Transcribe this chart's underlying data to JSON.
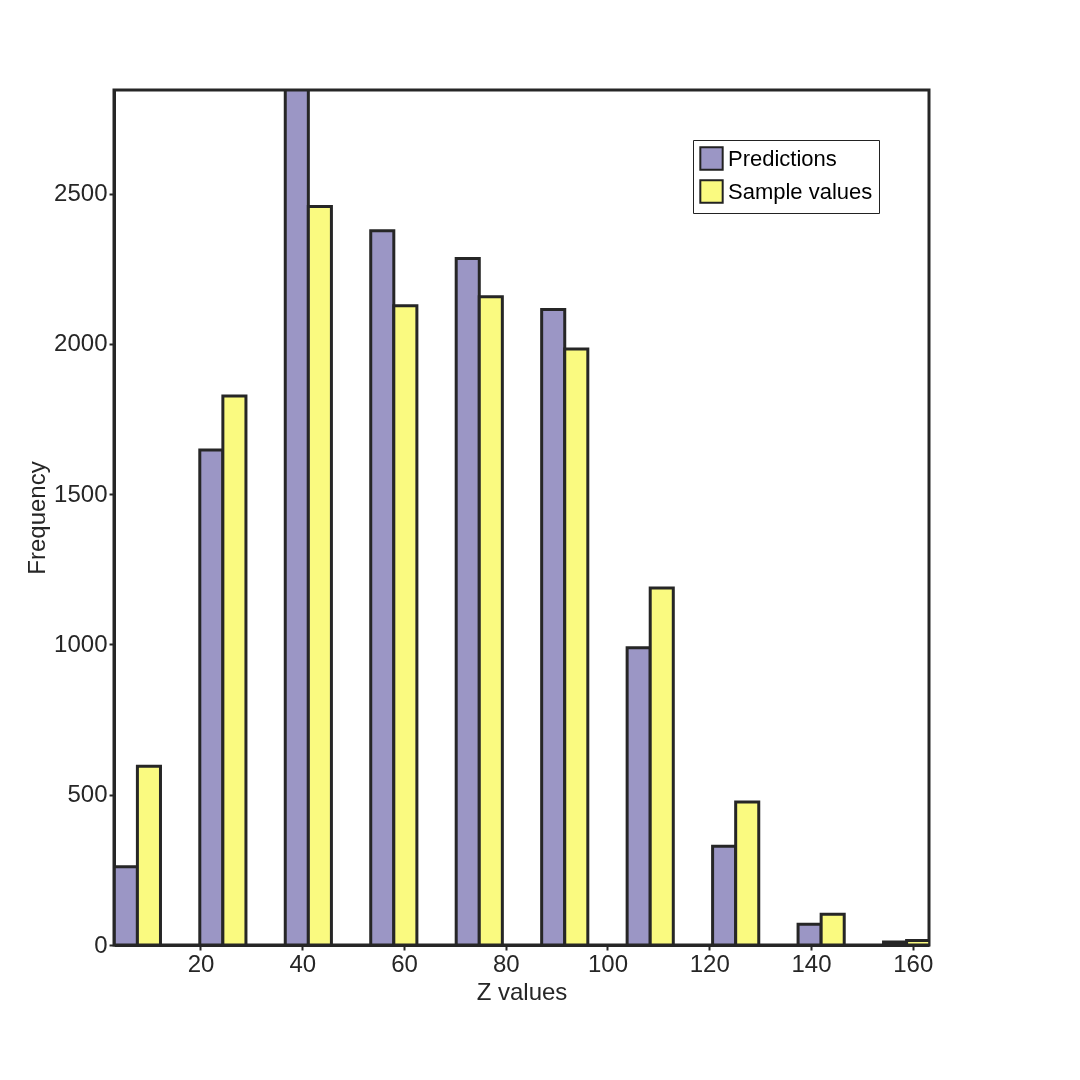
{
  "chart_data": {
    "type": "bar",
    "xlabel": "Z values",
    "ylabel": "Frequency",
    "x": [
      7.6,
      24.4,
      41.2,
      58.0,
      74.8,
      91.6,
      108.4,
      125.2,
      142.0,
      158.8
    ],
    "series": [
      {
        "name": "Predictions",
        "color": "#9b96c5",
        "values": [
          260,
          1647,
          2845,
          2377,
          2284,
          2115,
          989,
          329,
          69,
          10
        ]
      },
      {
        "name": "Sample values",
        "color": "#fafa80",
        "values": [
          595,
          1827,
          2457,
          2127,
          2157,
          1983,
          1188,
          476,
          102,
          15
        ]
      }
    ],
    "xlim": [
      3,
      163.2
    ],
    "xticks": [
      20,
      40,
      60,
      80,
      100,
      120,
      140,
      160
    ],
    "ylim": [
      0,
      2845
    ],
    "yticks": [
      0,
      500,
      1000,
      1500,
      2000,
      2500
    ],
    "grid": false,
    "legend": "top right"
  }
}
